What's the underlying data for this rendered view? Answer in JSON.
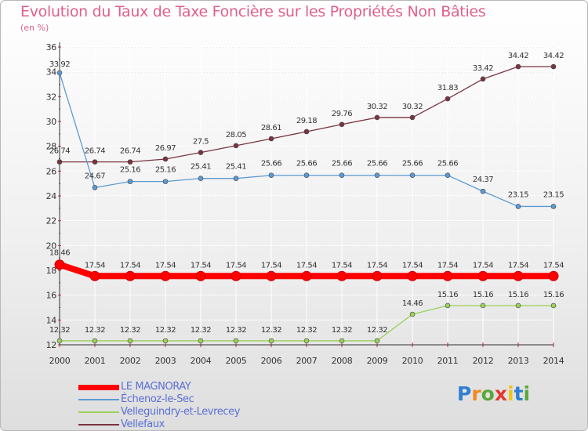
{
  "chart_data": {
    "type": "line",
    "title": "Evolution du Taux de Taxe Foncière sur les Propriétés Non Bâties",
    "subtitle": "(en %)",
    "xlabel": "",
    "ylabel": "",
    "ylim": [
      12,
      36
    ],
    "yticks": [
      "12",
      "14",
      "16",
      "18",
      "20",
      "22",
      "24",
      "26",
      "28",
      "30",
      "32",
      "34",
      "36"
    ],
    "categories": [
      "2000",
      "2001",
      "2002",
      "2003",
      "2004",
      "2005",
      "2006",
      "2007",
      "2008",
      "2009",
      "2010",
      "2011",
      "2012",
      "2013",
      "2014"
    ],
    "grid": true,
    "series": [
      {
        "name": "LE MAGNORAY",
        "color": "#ff0000",
        "values": [
          18.46,
          17.54,
          17.54,
          17.54,
          17.54,
          17.54,
          17.54,
          17.54,
          17.54,
          17.54,
          17.54,
          17.54,
          17.54,
          17.54,
          17.54
        ],
        "labels": [
          "18.46",
          "17.54",
          "17.54",
          "17.54",
          "17.54",
          "17.54",
          "17.54",
          "17.54",
          "17.54",
          "17.54",
          "17.54",
          "17.54",
          "17.54",
          "17.54",
          "17.54"
        ]
      },
      {
        "name": "Échenoz-le-Sec",
        "color": "#5b9bd5",
        "values": [
          33.92,
          24.67,
          25.16,
          25.16,
          25.41,
          25.41,
          25.66,
          25.66,
          25.66,
          25.66,
          25.66,
          25.66,
          24.37,
          23.15,
          23.15
        ],
        "labels": [
          "33.92",
          "24.67",
          "25.16",
          "25.16",
          "25.41",
          "25.41",
          "25.66",
          "25.66",
          "25.66",
          "25.66",
          "25.66",
          "25.66",
          "24.37",
          "23.15",
          "23.15"
        ]
      },
      {
        "name": "Velleguindry-et-Levrecey",
        "color": "#9ad05a",
        "values": [
          12.32,
          12.32,
          12.32,
          12.32,
          12.32,
          12.32,
          12.32,
          12.32,
          12.32,
          12.32,
          14.46,
          15.16,
          15.16,
          15.16,
          15.16
        ],
        "labels": [
          "12.32",
          "12.32",
          "12.32",
          "12.32",
          "12.32",
          "12.32",
          "12.32",
          "12.32",
          "12.32",
          "12.32",
          "14.46",
          "15.16",
          "15.16",
          "15.16",
          "15.16"
        ]
      },
      {
        "name": "Vellefaux",
        "color": "#7a3340",
        "values": [
          26.74,
          26.74,
          26.74,
          26.97,
          27.5,
          28.05,
          28.61,
          29.18,
          29.76,
          30.32,
          30.32,
          31.83,
          33.42,
          34.42,
          34.42
        ],
        "labels": [
          "26.74",
          "26.74",
          "26.74",
          "26.97",
          "27.5",
          "28.05",
          "28.61",
          "29.18",
          "29.76",
          "30.32",
          "30.32",
          "31.83",
          "33.42",
          "34.42",
          "34.42"
        ]
      }
    ]
  },
  "legend": {
    "items": [
      {
        "label": "LE MAGNORAY",
        "color": "#ff0000"
      },
      {
        "label": "Échenoz-le-Sec",
        "color": "#5b9bd5"
      },
      {
        "label": "Velleguindry-et-Levrecey",
        "color": "#9ad05a"
      },
      {
        "label": "Vellefaux",
        "color": "#7a3340"
      }
    ]
  },
  "logo": {
    "text": "Proxiti",
    "letters": [
      "P",
      "r",
      "o",
      "x",
      "i",
      "t",
      "i"
    ],
    "colors": [
      "#2f7fd0",
      "#f08a1c",
      "#5aa83a",
      "#e2392e",
      "#f0c419",
      "#2f7fd0",
      "#5aa83a"
    ]
  }
}
